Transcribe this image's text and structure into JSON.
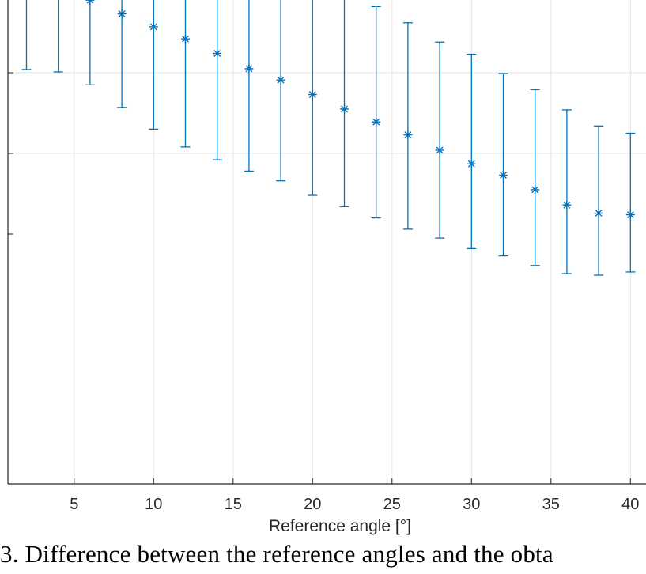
{
  "chart_data": {
    "type": "errorbar",
    "xlabel": "Reference angle [°]",
    "ylabel": "",
    "xlim": [
      0.5,
      40.5
    ],
    "ylim": [
      -1.08,
      4.0
    ],
    "grid": true,
    "x_ticks": [
      5,
      10,
      15,
      20,
      25,
      30,
      35,
      40
    ],
    "y_ticks": [
      0.0,
      1.0,
      2.0,
      3.0
    ],
    "color": "#0072BD",
    "series": [
      {
        "x": [
          2,
          4,
          6,
          8,
          10,
          12,
          14,
          16,
          18,
          20,
          22,
          24,
          26,
          28,
          30,
          32,
          34,
          36,
          38,
          40
        ],
        "y": [
          2.05,
          1.96,
          1.9,
          1.73,
          1.57,
          1.42,
          1.24,
          1.05,
          0.91,
          0.73,
          0.55,
          0.39,
          0.23,
          0.04,
          -0.13,
          -0.27,
          -0.45,
          -0.64,
          -0.74,
          -0.76
        ],
        "lower": [
          1.04,
          1.01,
          0.85,
          0.57,
          0.3,
          0.08,
          -0.08,
          -0.22,
          -0.34,
          -0.52,
          -0.66,
          -0.8,
          -0.94,
          -1.05,
          -1.18,
          -1.27,
          -1.39,
          -1.49,
          -1.51,
          -1.47
        ],
        "upper": [
          3.33,
          3.16,
          3.14,
          3.12,
          3.09,
          2.99,
          2.81,
          2.56,
          2.4,
          2.23,
          2.02,
          1.82,
          1.62,
          1.38,
          1.23,
          0.99,
          0.79,
          0.54,
          0.34,
          0.25
        ]
      }
    ]
  },
  "caption": "3. Difference between the reference angles and the obta"
}
